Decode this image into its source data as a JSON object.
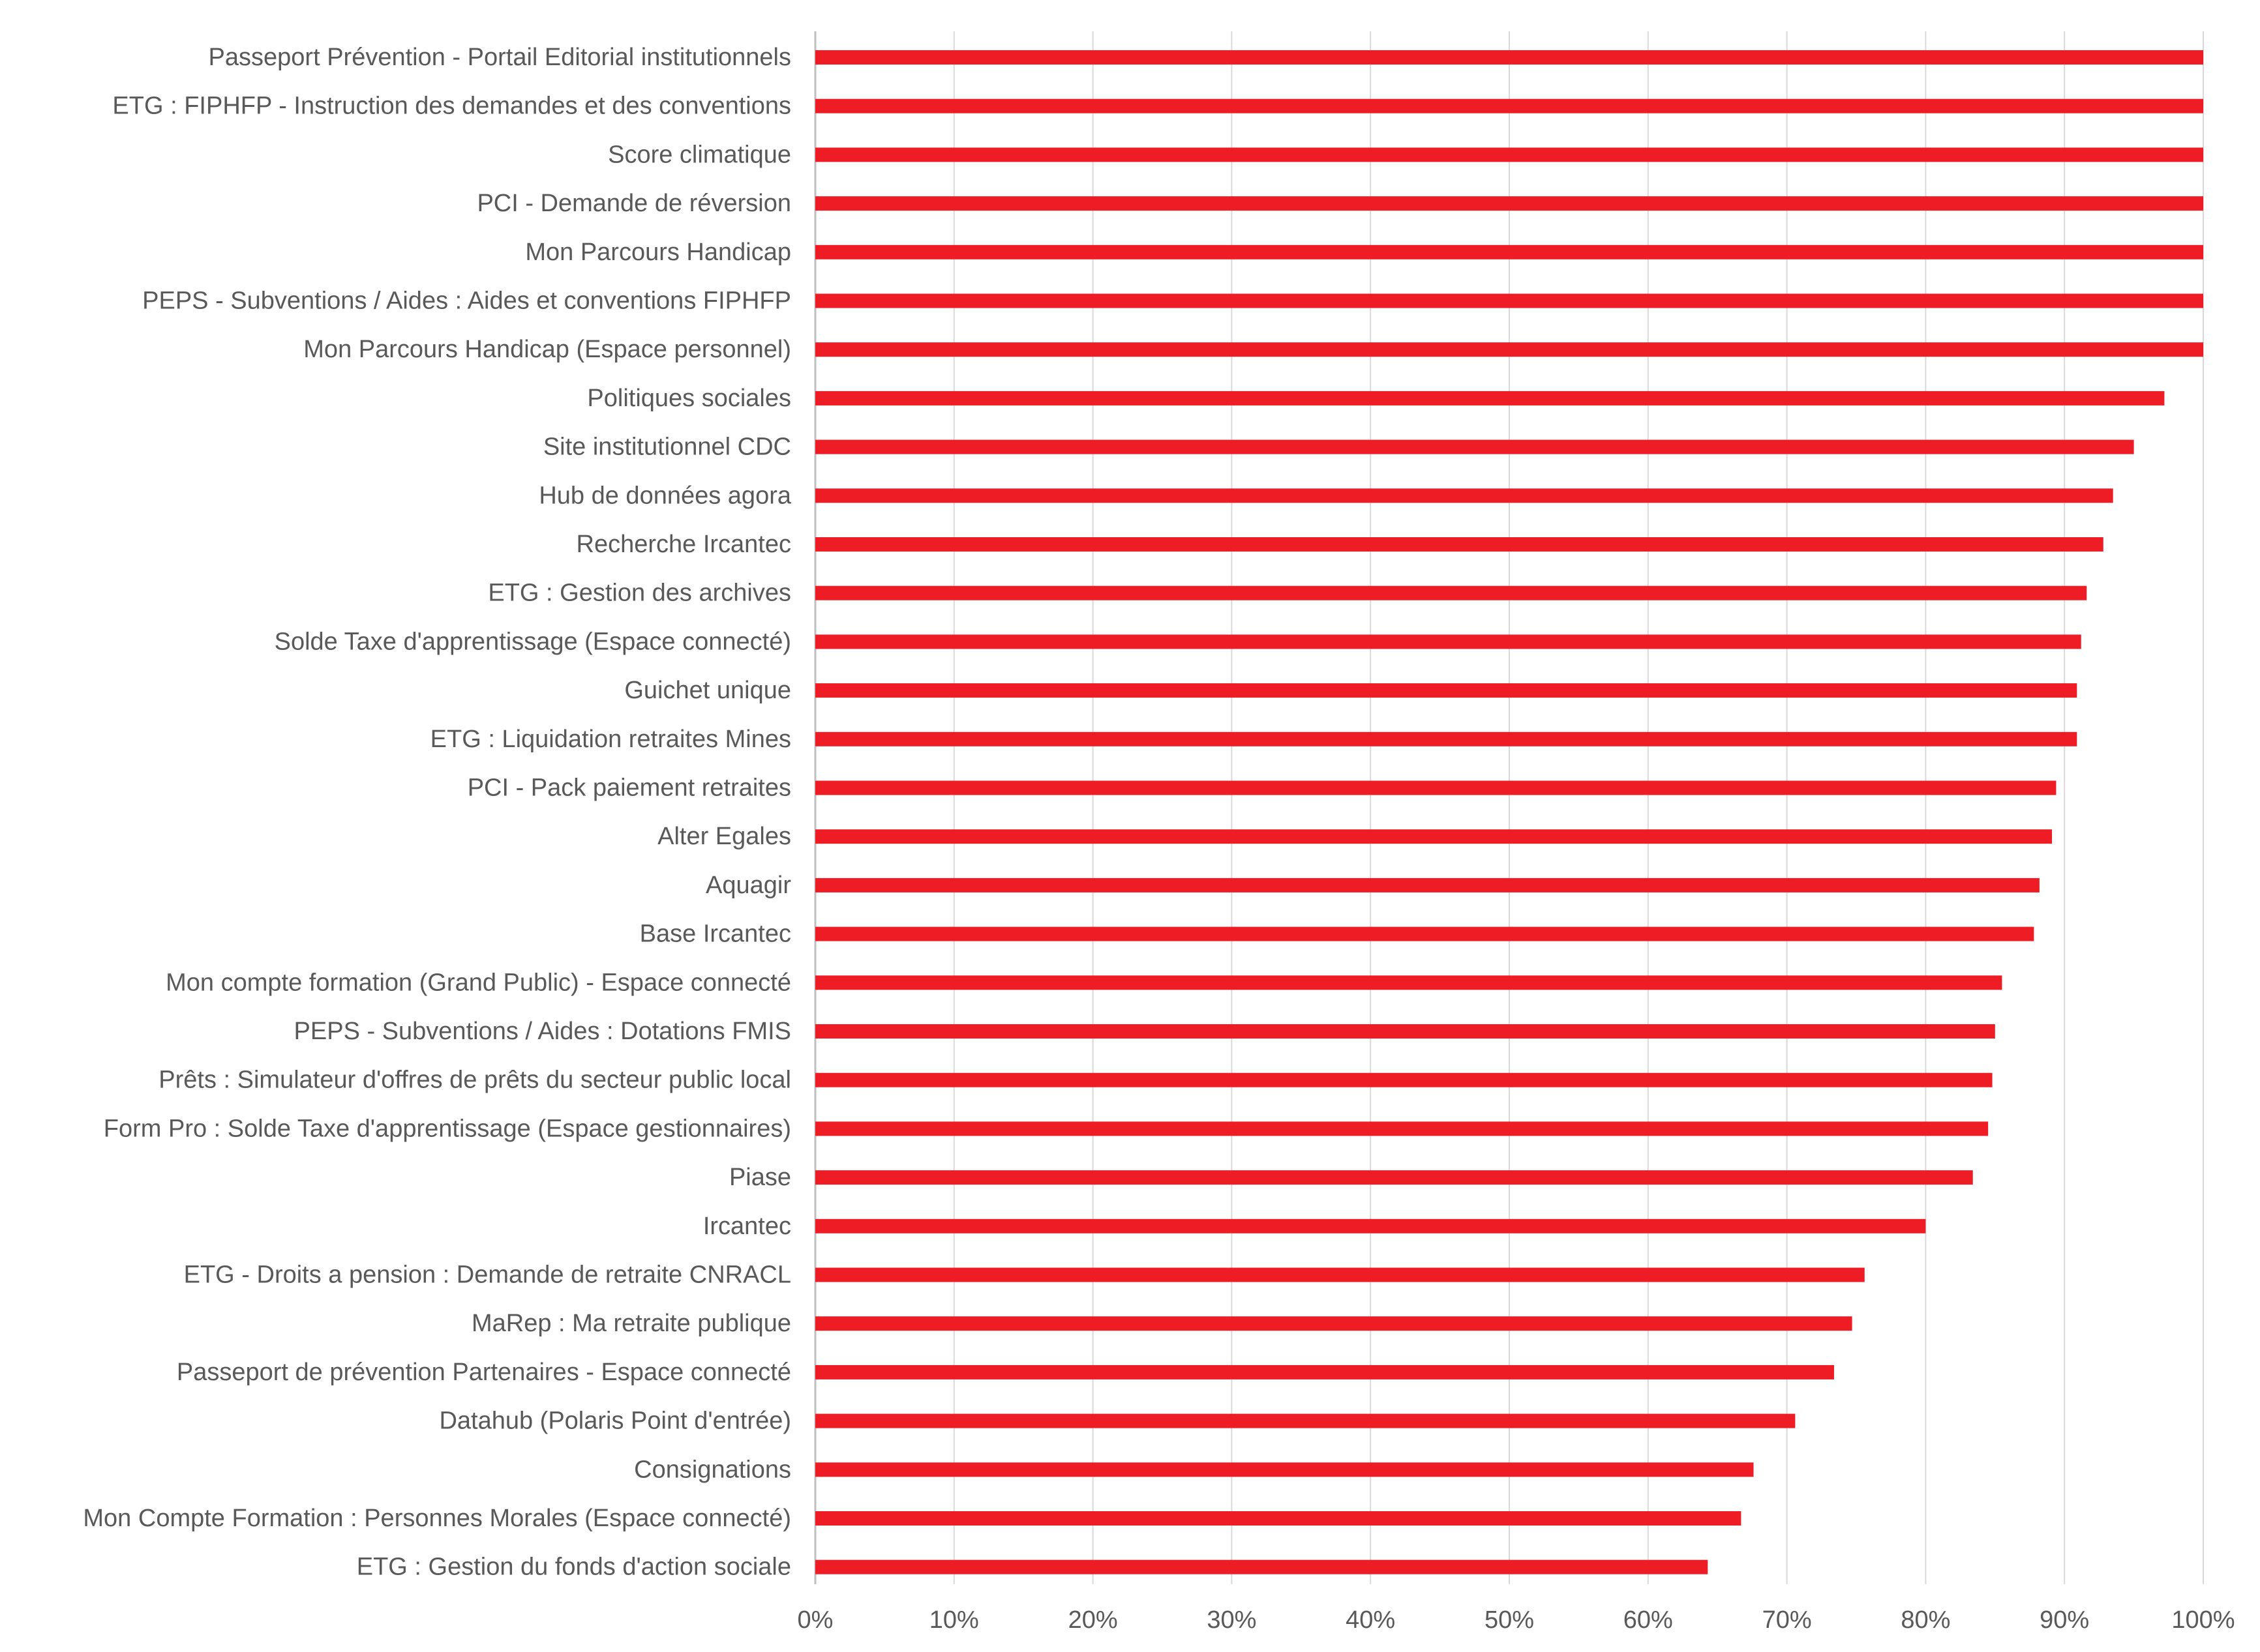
{
  "chart_data": {
    "type": "bar",
    "orientation": "horizontal",
    "title": "",
    "xlabel": "",
    "ylabel": "",
    "xlim": [
      0,
      100
    ],
    "x_ticks": [
      0,
      10,
      20,
      30,
      40,
      50,
      60,
      70,
      80,
      90,
      100
    ],
    "x_tick_labels": [
      "0%",
      "10%",
      "20%",
      "30%",
      "40%",
      "50%",
      "60%",
      "70%",
      "80%",
      "90%",
      "100%"
    ],
    "grid": true,
    "legend": "none",
    "bar_color": "#ee1c25",
    "categories": [
      "Passeport Prévention - Portail Editorial institutionnels",
      "ETG :  FIPHFP - Instruction des demandes et des conventions",
      "Score climatique",
      "PCI - Demande de réversion",
      "Mon Parcours Handicap",
      "PEPS - Subventions / Aides : Aides et conventions FIPHFP",
      "Mon Parcours Handicap (Espace personnel)",
      "Politiques sociales",
      "Site institutionnel CDC",
      "Hub de données agora",
      "Recherche Ircantec",
      "ETG :  Gestion des archives",
      "Solde Taxe d'apprentissage (Espace connecté)",
      "Guichet unique",
      "ETG :  Liquidation retraites Mines",
      "PCI - Pack paiement retraites",
      "Alter Egales",
      "Aquagir",
      "Base Ircantec",
      "Mon compte formation (Grand Public) - Espace connecté",
      "PEPS - Subventions / Aides : Dotations FMIS",
      "Prêts : Simulateur d'offres de prêts du secteur public local",
      "Form Pro : Solde Taxe d'apprentissage (Espace gestionnaires)",
      "Piase",
      "Ircantec",
      "ETG - Droits a  pension : Demande de retraite CNRACL",
      "MaRep : Ma retraite publique",
      "Passeport de prévention Partenaires - Espace connecté",
      "Datahub (Polaris Point d'entrée)",
      "Consignations",
      "Mon Compte Formation : Personnes Morales (Espace connecté)",
      "ETG :  Gestion du fonds d'action sociale"
    ],
    "values": [
      100,
      100,
      100,
      100,
      100,
      100,
      100,
      97.2,
      95,
      93.5,
      92.8,
      91.6,
      91.2,
      90.9,
      90.9,
      89.4,
      89.1,
      88.2,
      87.8,
      85.5,
      85,
      84.8,
      84.5,
      83.4,
      80,
      75.6,
      74.7,
      73.4,
      70.6,
      67.6,
      66.7,
      64.3
    ]
  }
}
